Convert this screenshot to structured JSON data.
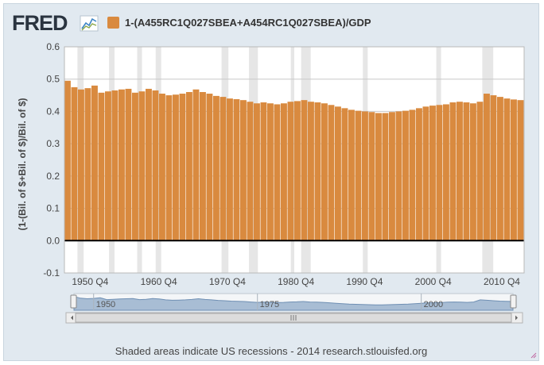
{
  "brand": {
    "logo_text": "FRED",
    "logo_icon": "line-chart-icon"
  },
  "legend": {
    "label": "1-(A455RC1Q027SBEA+A454RC1Q027SBEA)/GDP",
    "color": "#d98a3f"
  },
  "footer": {
    "text": "Shaded areas indicate US recessions - 2014 research.stlouisfed.org"
  },
  "navigator": {
    "year_labels": [
      "1950",
      "1975",
      "2000"
    ],
    "grip_icon": "grip-lines-icon"
  },
  "chart_data": {
    "type": "bar",
    "title": "",
    "ylabel": "(1-(Bil. of $+Bil. of $)/Bil. of $)",
    "xlabel": "",
    "ylim": [
      -0.1,
      0.6
    ],
    "yticks": [
      "-0.1",
      "0.0",
      "0.1",
      "0.2",
      "0.3",
      "0.4",
      "0.5",
      "0.6"
    ],
    "xticks": [
      "1950 Q4",
      "1960 Q4",
      "1970 Q4",
      "1980 Q4",
      "1990 Q4",
      "2000 Q4",
      "2010 Q4"
    ],
    "x_range": [
      1947.0,
      2014.0
    ],
    "grid": "horizontal",
    "recessions": [
      [
        1948.9,
        1949.8
      ],
      [
        1953.5,
        1954.3
      ],
      [
        1957.6,
        1958.3
      ],
      [
        1960.3,
        1961.1
      ],
      [
        1969.9,
        1970.9
      ],
      [
        1973.9,
        1975.2
      ],
      [
        1980.0,
        1980.5
      ],
      [
        1981.5,
        1982.9
      ],
      [
        1990.5,
        1991.2
      ],
      [
        2001.2,
        2001.9
      ],
      [
        2007.9,
        2009.5
      ]
    ],
    "series": [
      {
        "values": [
          [
            1947,
            0.495
          ],
          [
            1948,
            0.475
          ],
          [
            1949,
            0.468
          ],
          [
            1950,
            0.472
          ],
          [
            1951,
            0.48
          ],
          [
            1952,
            0.458
          ],
          [
            1953,
            0.462
          ],
          [
            1954,
            0.465
          ],
          [
            1955,
            0.468
          ],
          [
            1956,
            0.47
          ],
          [
            1957,
            0.458
          ],
          [
            1958,
            0.462
          ],
          [
            1959,
            0.47
          ],
          [
            1960,
            0.465
          ],
          [
            1961,
            0.455
          ],
          [
            1962,
            0.45
          ],
          [
            1963,
            0.452
          ],
          [
            1964,
            0.455
          ],
          [
            1965,
            0.46
          ],
          [
            1966,
            0.468
          ],
          [
            1967,
            0.46
          ],
          [
            1968,
            0.455
          ],
          [
            1969,
            0.448
          ],
          [
            1970,
            0.445
          ],
          [
            1971,
            0.44
          ],
          [
            1972,
            0.438
          ],
          [
            1973,
            0.435
          ],
          [
            1974,
            0.43
          ],
          [
            1975,
            0.425
          ],
          [
            1976,
            0.428
          ],
          [
            1977,
            0.425
          ],
          [
            1978,
            0.422
          ],
          [
            1979,
            0.425
          ],
          [
            1980,
            0.43
          ],
          [
            1981,
            0.432
          ],
          [
            1982,
            0.435
          ],
          [
            1983,
            0.43
          ],
          [
            1984,
            0.428
          ],
          [
            1985,
            0.425
          ],
          [
            1986,
            0.42
          ],
          [
            1987,
            0.415
          ],
          [
            1988,
            0.41
          ],
          [
            1989,
            0.405
          ],
          [
            1990,
            0.402
          ],
          [
            1991,
            0.4
          ],
          [
            1992,
            0.398
          ],
          [
            1993,
            0.395
          ],
          [
            1994,
            0.395
          ],
          [
            1995,
            0.398
          ],
          [
            1996,
            0.4
          ],
          [
            1997,
            0.402
          ],
          [
            1998,
            0.405
          ],
          [
            1999,
            0.41
          ],
          [
            2000,
            0.415
          ],
          [
            2001,
            0.418
          ],
          [
            2002,
            0.42
          ],
          [
            2003,
            0.422
          ],
          [
            2004,
            0.428
          ],
          [
            2005,
            0.43
          ],
          [
            2006,
            0.428
          ],
          [
            2007,
            0.425
          ],
          [
            2008,
            0.43
          ],
          [
            2009,
            0.455
          ],
          [
            2010,
            0.45
          ],
          [
            2011,
            0.445
          ],
          [
            2012,
            0.44
          ],
          [
            2013,
            0.437
          ],
          [
            2014,
            0.435
          ]
        ]
      }
    ]
  }
}
